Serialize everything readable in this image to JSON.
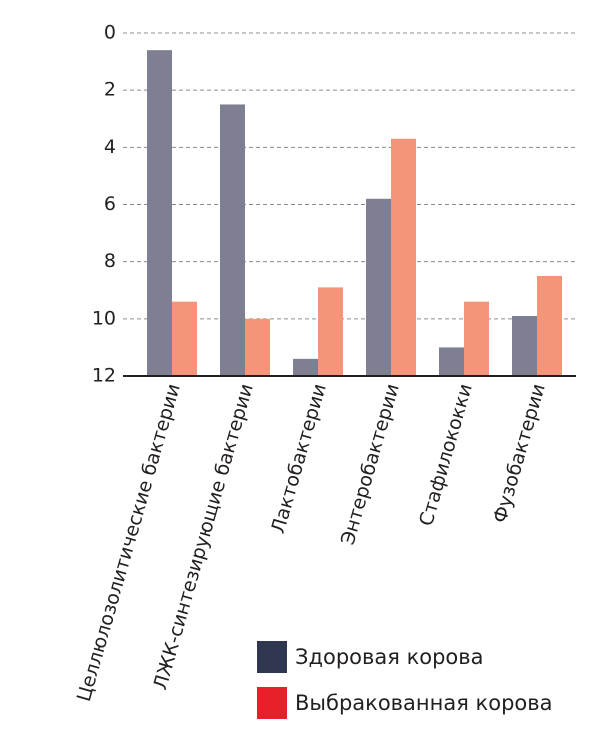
{
  "chart_data": {
    "type": "bar",
    "orientation": "vertical-inverted",
    "title": "",
    "xlabel": "",
    "ylabel": "",
    "ylim": [
      0,
      12
    ],
    "yaxis_inverted": true,
    "yticks": [
      "0",
      "2",
      "4",
      "6",
      "8",
      "10",
      "12"
    ],
    "grid": "horizontal-dashed",
    "legend_position": "bottom-right",
    "categories": [
      "Целлюлозолитические бактерии",
      "ЛЖК-синтезирующие бактерии",
      "Лактобактерии",
      "Энтеробактерии",
      "Стафилококки",
      "Фузобактерии"
    ],
    "series": [
      {
        "name": "Здоровая корова",
        "color": "#7f7f94",
        "legend_color": "#2f3650",
        "values": [
          0.6,
          2.5,
          11.4,
          5.8,
          11.0,
          9.9
        ]
      },
      {
        "name": "Выбракованная корова",
        "color": "#f4957a",
        "legend_color": "#e8202a",
        "values": [
          9.4,
          10.0,
          8.9,
          3.7,
          9.4,
          8.5
        ]
      }
    ]
  }
}
